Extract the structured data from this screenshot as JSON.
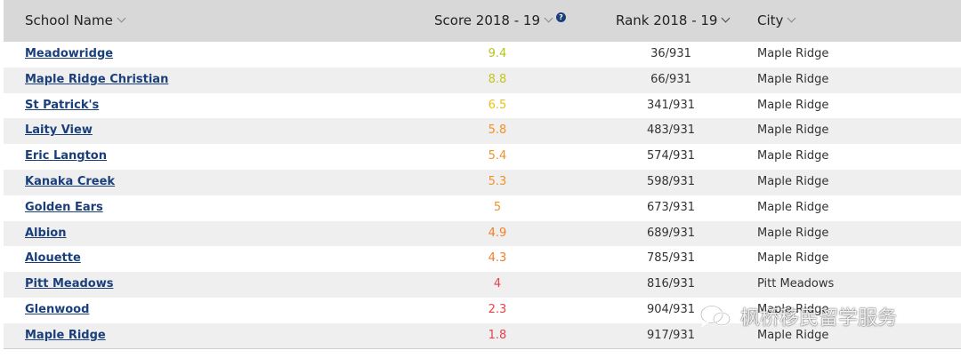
{
  "header": {
    "school_name": "School Name",
    "score": "Score 2018 - 19",
    "rank": "Rank 2018 - 19",
    "city": "City",
    "help_glyph": "?"
  },
  "colors": {
    "header_bg": "#d8d8d8",
    "link": "#1b3f7a",
    "row_alt": "#efefef"
  },
  "rows": [
    {
      "name": "Meadowridge",
      "score": "9.4",
      "score_color": "#b5c21a",
      "rank": "36/931",
      "city": "Maple Ridge"
    },
    {
      "name": "Maple Ridge Christian",
      "score": "8.8",
      "score_color": "#c3c51c",
      "rank": "66/931",
      "city": "Maple Ridge"
    },
    {
      "name": "St Patrick's",
      "score": "6.5",
      "score_color": "#e8c21a",
      "rank": "341/931",
      "city": "Maple Ridge"
    },
    {
      "name": "Laity View",
      "score": "5.8",
      "score_color": "#f0922a",
      "rank": "483/931",
      "city": "Maple Ridge"
    },
    {
      "name": "Eric Langton",
      "score": "5.4",
      "score_color": "#f0922a",
      "rank": "574/931",
      "city": "Maple Ridge"
    },
    {
      "name": "Kanaka Creek",
      "score": "5.3",
      "score_color": "#f0922a",
      "rank": "598/931",
      "city": "Maple Ridge"
    },
    {
      "name": "Golden Ears",
      "score": "5",
      "score_color": "#f0922a",
      "rank": "673/931",
      "city": "Maple Ridge"
    },
    {
      "name": "Albion",
      "score": "4.9",
      "score_color": "#f07e2a",
      "rank": "689/931",
      "city": "Maple Ridge"
    },
    {
      "name": "Alouette",
      "score": "4.3",
      "score_color": "#f07e2a",
      "rank": "785/931",
      "city": "Maple Ridge"
    },
    {
      "name": "Pitt Meadows",
      "score": "4",
      "score_color": "#e8434a",
      "rank": "816/931",
      "city": "Pitt Meadows"
    },
    {
      "name": "Glenwood",
      "score": "2.3",
      "score_color": "#e8434a",
      "rank": "904/931",
      "city": "Maple Ridge"
    },
    {
      "name": "Maple Ridge",
      "score": "1.8",
      "score_color": "#e8434a",
      "rank": "917/931",
      "city": "Maple Ridge"
    }
  ],
  "watermark": {
    "text": "枫桥移民留学服务",
    "icon": "wechat-icon"
  }
}
